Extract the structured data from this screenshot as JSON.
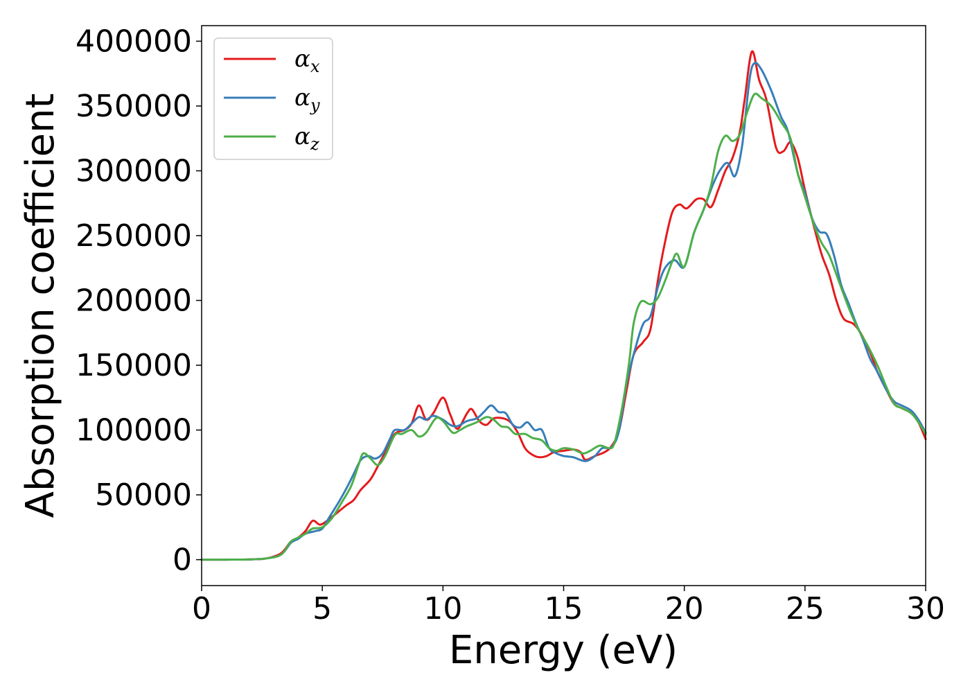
{
  "chart_data": {
    "type": "line",
    "title": "",
    "xlabel": "Energy (eV)",
    "ylabel": "Absorption coefficient",
    "xlim": [
      0,
      30
    ],
    "ylim": [
      -20000,
      412000
    ],
    "xticks": [
      0,
      5,
      10,
      15,
      20,
      25,
      30
    ],
    "xtick_labels": [
      "0",
      "5",
      "10",
      "15",
      "20",
      "25",
      "30"
    ],
    "yticks": [
      0,
      50000,
      100000,
      150000,
      200000,
      250000,
      300000,
      350000,
      400000
    ],
    "ytick_labels": [
      "0",
      "50000",
      "100000",
      "150000",
      "200000",
      "250000",
      "300000",
      "350000",
      "400000"
    ],
    "grid": false,
    "legend": "top-left",
    "colors": {
      "alpha_x": "#e41a1c",
      "alpha_y": "#377eb8",
      "alpha_z": "#4daf4a"
    },
    "series": [
      {
        "name": "αx",
        "symbol": "α",
        "subscript": "x",
        "color": "#e41a1c",
        "points": [
          [
            0,
            0
          ],
          [
            1,
            0
          ],
          [
            2,
            200
          ],
          [
            2.7,
            1000
          ],
          [
            3.3,
            5000
          ],
          [
            3.7,
            14000
          ],
          [
            4.0,
            17000
          ],
          [
            4.3,
            22000
          ],
          [
            4.6,
            30000
          ],
          [
            4.9,
            27000
          ],
          [
            5.2,
            30000
          ],
          [
            5.6,
            36000
          ],
          [
            6.0,
            42000
          ],
          [
            6.3,
            46000
          ],
          [
            6.6,
            54000
          ],
          [
            7.0,
            62000
          ],
          [
            7.3,
            72000
          ],
          [
            7.7,
            86000
          ],
          [
            8.0,
            97000
          ],
          [
            8.4,
            100000
          ],
          [
            8.7,
            105000
          ],
          [
            9.0,
            119000
          ],
          [
            9.3,
            108000
          ],
          [
            9.6,
            113000
          ],
          [
            10.0,
            125000
          ],
          [
            10.3,
            112000
          ],
          [
            10.6,
            101000
          ],
          [
            11.0,
            113000
          ],
          [
            11.2,
            116000
          ],
          [
            11.5,
            107000
          ],
          [
            11.8,
            104000
          ],
          [
            12.1,
            109000
          ],
          [
            12.5,
            109000
          ],
          [
            12.8,
            106000
          ],
          [
            13.1,
            98000
          ],
          [
            13.4,
            86000
          ],
          [
            13.7,
            81000
          ],
          [
            14.0,
            79000
          ],
          [
            14.3,
            80000
          ],
          [
            14.6,
            83000
          ],
          [
            15.0,
            84000
          ],
          [
            15.4,
            85000
          ],
          [
            15.7,
            83000
          ],
          [
            15.9,
            77000
          ],
          [
            16.3,
            80000
          ],
          [
            16.7,
            83000
          ],
          [
            17.0,
            88000
          ],
          [
            17.3,
            100000
          ],
          [
            17.6,
            130000
          ],
          [
            17.9,
            158000
          ],
          [
            18.3,
            168000
          ],
          [
            18.6,
            178000
          ],
          [
            18.9,
            215000
          ],
          [
            19.2,
            245000
          ],
          [
            19.5,
            268000
          ],
          [
            19.8,
            274000
          ],
          [
            20.1,
            271000
          ],
          [
            20.5,
            278000
          ],
          [
            20.8,
            278000
          ],
          [
            21.1,
            272000
          ],
          [
            21.4,
            285000
          ],
          [
            21.7,
            300000
          ],
          [
            22.0,
            310000
          ],
          [
            22.3,
            330000
          ],
          [
            22.5,
            355000
          ],
          [
            22.8,
            392000
          ],
          [
            23.1,
            370000
          ],
          [
            23.4,
            355000
          ],
          [
            23.8,
            318000
          ],
          [
            24.1,
            315000
          ],
          [
            24.4,
            322000
          ],
          [
            24.7,
            310000
          ],
          [
            25.0,
            285000
          ],
          [
            25.4,
            255000
          ],
          [
            25.7,
            235000
          ],
          [
            26.0,
            220000
          ],
          [
            26.3,
            200000
          ],
          [
            26.6,
            186000
          ],
          [
            27.0,
            182000
          ],
          [
            27.3,
            175000
          ],
          [
            27.7,
            160000
          ],
          [
            28.0,
            145000
          ],
          [
            28.4,
            130000
          ],
          [
            28.7,
            120000
          ],
          [
            29.0,
            117000
          ],
          [
            29.4,
            113000
          ],
          [
            29.7,
            106000
          ],
          [
            30.0,
            93000
          ]
        ]
      },
      {
        "name": "αy",
        "symbol": "α",
        "subscript": "y",
        "color": "#377eb8",
        "points": [
          [
            0,
            0
          ],
          [
            1,
            0
          ],
          [
            2,
            200
          ],
          [
            2.7,
            1000
          ],
          [
            3.3,
            4000
          ],
          [
            3.7,
            13000
          ],
          [
            4.0,
            16000
          ],
          [
            4.3,
            20000
          ],
          [
            4.7,
            22000
          ],
          [
            5.0,
            24000
          ],
          [
            5.3,
            33000
          ],
          [
            5.7,
            45000
          ],
          [
            6.0,
            55000
          ],
          [
            6.3,
            66000
          ],
          [
            6.6,
            77000
          ],
          [
            6.9,
            80000
          ],
          [
            7.2,
            78000
          ],
          [
            7.5,
            82000
          ],
          [
            7.8,
            93000
          ],
          [
            8.0,
            100000
          ],
          [
            8.4,
            100000
          ],
          [
            8.7,
            105000
          ],
          [
            9.0,
            110000
          ],
          [
            9.3,
            108000
          ],
          [
            9.6,
            111000
          ],
          [
            10.0,
            108000
          ],
          [
            10.3,
            104000
          ],
          [
            10.6,
            103000
          ],
          [
            11.0,
            107000
          ],
          [
            11.4,
            109000
          ],
          [
            11.7,
            114000
          ],
          [
            12.0,
            119000
          ],
          [
            12.3,
            114000
          ],
          [
            12.6,
            113000
          ],
          [
            12.9,
            104000
          ],
          [
            13.2,
            102000
          ],
          [
            13.5,
            106000
          ],
          [
            13.8,
            100000
          ],
          [
            14.1,
            100000
          ],
          [
            14.4,
            86000
          ],
          [
            14.7,
            82000
          ],
          [
            15.0,
            80000
          ],
          [
            15.4,
            79000
          ],
          [
            15.9,
            76000
          ],
          [
            16.3,
            80000
          ],
          [
            16.6,
            86000
          ],
          [
            17.0,
            87000
          ],
          [
            17.3,
            100000
          ],
          [
            17.6,
            135000
          ],
          [
            18.0,
            165000
          ],
          [
            18.3,
            182000
          ],
          [
            18.6,
            188000
          ],
          [
            18.9,
            210000
          ],
          [
            19.2,
            225000
          ],
          [
            19.6,
            231000
          ],
          [
            20.0,
            226000
          ],
          [
            20.4,
            252000
          ],
          [
            20.8,
            270000
          ],
          [
            21.2,
            290000
          ],
          [
            21.5,
            301000
          ],
          [
            21.8,
            306000
          ],
          [
            22.1,
            296000
          ],
          [
            22.4,
            320000
          ],
          [
            22.7,
            370000
          ],
          [
            22.9,
            383000
          ],
          [
            23.2,
            378000
          ],
          [
            23.6,
            362000
          ],
          [
            24.0,
            342000
          ],
          [
            24.3,
            330000
          ],
          [
            24.7,
            298000
          ],
          [
            25.0,
            283000
          ],
          [
            25.3,
            263000
          ],
          [
            25.6,
            253000
          ],
          [
            25.9,
            251000
          ],
          [
            26.2,
            235000
          ],
          [
            26.5,
            212000
          ],
          [
            26.8,
            198000
          ],
          [
            27.1,
            183000
          ],
          [
            27.4,
            170000
          ],
          [
            27.7,
            155000
          ],
          [
            28.0,
            145000
          ],
          [
            28.4,
            130000
          ],
          [
            28.7,
            122000
          ],
          [
            29.0,
            119000
          ],
          [
            29.4,
            115000
          ],
          [
            29.7,
            108000
          ],
          [
            30.0,
            98000
          ]
        ]
      },
      {
        "name": "αz",
        "symbol": "α",
        "subscript": "z",
        "color": "#4daf4a",
        "points": [
          [
            0,
            0
          ],
          [
            1,
            0
          ],
          [
            2,
            200
          ],
          [
            2.7,
            1000
          ],
          [
            3.3,
            4000
          ],
          [
            3.7,
            14000
          ],
          [
            4.0,
            17000
          ],
          [
            4.3,
            20000
          ],
          [
            4.6,
            24000
          ],
          [
            5.0,
            25000
          ],
          [
            5.4,
            32000
          ],
          [
            5.8,
            44000
          ],
          [
            6.2,
            57000
          ],
          [
            6.5,
            73000
          ],
          [
            6.7,
            82000
          ],
          [
            7.0,
            78000
          ],
          [
            7.3,
            73000
          ],
          [
            7.6,
            80000
          ],
          [
            8.0,
            96000
          ],
          [
            8.3,
            97000
          ],
          [
            8.7,
            100000
          ],
          [
            9.0,
            95000
          ],
          [
            9.3,
            98000
          ],
          [
            9.7,
            109000
          ],
          [
            10.0,
            107000
          ],
          [
            10.4,
            98000
          ],
          [
            10.7,
            100000
          ],
          [
            11.0,
            103000
          ],
          [
            11.4,
            106000
          ],
          [
            11.8,
            110000
          ],
          [
            12.1,
            108000
          ],
          [
            12.4,
            103000
          ],
          [
            12.7,
            102000
          ],
          [
            13.0,
            97000
          ],
          [
            13.4,
            97000
          ],
          [
            13.7,
            94000
          ],
          [
            14.1,
            92000
          ],
          [
            14.4,
            86000
          ],
          [
            14.7,
            84000
          ],
          [
            15.0,
            86000
          ],
          [
            15.4,
            85000
          ],
          [
            15.8,
            82000
          ],
          [
            16.1,
            84000
          ],
          [
            16.5,
            88000
          ],
          [
            16.9,
            86000
          ],
          [
            17.1,
            90000
          ],
          [
            17.4,
            115000
          ],
          [
            17.7,
            150000
          ],
          [
            17.9,
            182000
          ],
          [
            18.2,
            199000
          ],
          [
            18.6,
            197000
          ],
          [
            18.9,
            202000
          ],
          [
            19.2,
            215000
          ],
          [
            19.5,
            230000
          ],
          [
            19.7,
            236000
          ],
          [
            20.0,
            226000
          ],
          [
            20.4,
            252000
          ],
          [
            20.8,
            270000
          ],
          [
            21.1,
            288000
          ],
          [
            21.4,
            315000
          ],
          [
            21.7,
            327000
          ],
          [
            22.0,
            323000
          ],
          [
            22.3,
            328000
          ],
          [
            22.6,
            345000
          ],
          [
            22.9,
            359000
          ],
          [
            23.2,
            356000
          ],
          [
            23.6,
            350000
          ],
          [
            24.0,
            338000
          ],
          [
            24.4,
            325000
          ],
          [
            24.7,
            298000
          ],
          [
            25.0,
            280000
          ],
          [
            25.4,
            257000
          ],
          [
            25.7,
            244000
          ],
          [
            26.0,
            235000
          ],
          [
            26.4,
            215000
          ],
          [
            26.8,
            195000
          ],
          [
            27.2,
            178000
          ],
          [
            27.6,
            165000
          ],
          [
            28.0,
            150000
          ],
          [
            28.4,
            132000
          ],
          [
            28.7,
            120000
          ],
          [
            29.0,
            117000
          ],
          [
            29.4,
            113000
          ],
          [
            29.7,
            106000
          ],
          [
            30.0,
            97000
          ]
        ]
      }
    ]
  }
}
